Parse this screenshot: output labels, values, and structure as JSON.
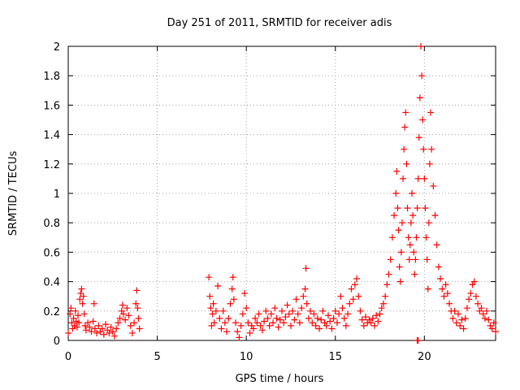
{
  "chart_data": {
    "type": "scatter",
    "title": "Day 251 of 2011, SRMTID for receiver adis",
    "xlabel": "GPS time / hours",
    "ylabel": "SRMTID / TECUs",
    "xlim": [
      0,
      24
    ],
    "ylim": [
      0,
      2
    ],
    "xticks": [
      0,
      5,
      10,
      15,
      20
    ],
    "xtick_labels": [
      "0",
      "5",
      "10",
      "15",
      "20"
    ],
    "yticks": [
      0,
      0.2,
      0.4,
      0.6,
      0.8,
      1,
      1.2,
      1.4,
      1.6,
      1.8,
      2
    ],
    "ytick_labels": [
      "0",
      "0.2",
      "0.4",
      "0.6",
      "0.8",
      "1",
      "1.2",
      "1.4",
      "1.6",
      "1.8",
      "2"
    ],
    "grid": true,
    "marker": "+",
    "color": "#ff0000",
    "series": [
      {
        "name": "SRMTID",
        "points": [
          [
            0.0,
            0.05
          ],
          [
            0.1,
            0.18
          ],
          [
            0.15,
            0.22
          ],
          [
            0.2,
            0.12
          ],
          [
            0.25,
            0.08
          ],
          [
            0.3,
            0.15
          ],
          [
            0.35,
            0.1
          ],
          [
            0.4,
            0.2
          ],
          [
            0.45,
            0.13
          ],
          [
            0.5,
            0.09
          ],
          [
            0.55,
            0.17
          ],
          [
            0.6,
            0.12
          ],
          [
            0.65,
            0.28
          ],
          [
            0.7,
            0.32
          ],
          [
            0.75,
            0.35
          ],
          [
            0.8,
            0.25
          ],
          [
            0.85,
            0.3
          ],
          [
            0.9,
            0.18
          ],
          [
            0.95,
            0.1
          ],
          [
            1.0,
            0.07
          ],
          [
            1.1,
            0.12
          ],
          [
            1.2,
            0.09
          ],
          [
            1.3,
            0.06
          ],
          [
            1.4,
            0.13
          ],
          [
            1.45,
            0.25
          ],
          [
            1.5,
            0.08
          ],
          [
            1.6,
            0.05
          ],
          [
            1.7,
            0.1
          ],
          [
            1.8,
            0.06
          ],
          [
            1.9,
            0.08
          ],
          [
            2.0,
            0.04
          ],
          [
            2.1,
            0.11
          ],
          [
            2.2,
            0.07
          ],
          [
            2.3,
            0.05
          ],
          [
            2.4,
            0.09
          ],
          [
            2.5,
            0.06
          ],
          [
            2.6,
            0.03
          ],
          [
            2.7,
            0.08
          ],
          [
            2.8,
            0.12
          ],
          [
            2.9,
            0.15
          ],
          [
            3.0,
            0.2
          ],
          [
            3.05,
            0.24
          ],
          [
            3.1,
            0.18
          ],
          [
            3.2,
            0.14
          ],
          [
            3.3,
            0.22
          ],
          [
            3.4,
            0.17
          ],
          [
            3.5,
            0.1
          ],
          [
            3.6,
            0.05
          ],
          [
            3.7,
            0.12
          ],
          [
            3.8,
            0.25
          ],
          [
            3.85,
            0.34
          ],
          [
            3.9,
            0.22
          ],
          [
            3.95,
            0.15
          ],
          [
            4.0,
            0.08
          ],
          [
            7.9,
            0.43
          ],
          [
            7.95,
            0.3
          ],
          [
            8.0,
            0.22
          ],
          [
            8.05,
            0.1
          ],
          [
            8.1,
            0.18
          ],
          [
            8.15,
            0.25
          ],
          [
            8.2,
            0.12
          ],
          [
            8.3,
            0.2
          ],
          [
            8.4,
            0.37
          ],
          [
            8.5,
            0.15
          ],
          [
            8.6,
            0.08
          ],
          [
            8.7,
            0.2
          ],
          [
            8.8,
            0.12
          ],
          [
            8.9,
            0.06
          ],
          [
            9.0,
            0.15
          ],
          [
            9.1,
            0.25
          ],
          [
            9.2,
            0.35
          ],
          [
            9.25,
            0.43
          ],
          [
            9.3,
            0.28
          ],
          [
            9.4,
            0.12
          ],
          [
            9.5,
            0.06
          ],
          [
            9.6,
            0.02
          ],
          [
            9.7,
            0.1
          ],
          [
            9.8,
            0.18
          ],
          [
            9.9,
            0.32
          ],
          [
            10.0,
            0.22
          ],
          [
            10.1,
            0.12
          ],
          [
            10.2,
            0.05
          ],
          [
            10.3,
            0.1
          ],
          [
            10.4,
            0.08
          ],
          [
            10.5,
            0.15
          ],
          [
            10.6,
            0.12
          ],
          [
            10.7,
            0.18
          ],
          [
            10.8,
            0.1
          ],
          [
            10.9,
            0.07
          ],
          [
            11.0,
            0.13
          ],
          [
            11.1,
            0.2
          ],
          [
            11.2,
            0.15
          ],
          [
            11.3,
            0.1
          ],
          [
            11.4,
            0.18
          ],
          [
            11.5,
            0.12
          ],
          [
            11.6,
            0.22
          ],
          [
            11.7,
            0.15
          ],
          [
            11.8,
            0.09
          ],
          [
            11.9,
            0.14
          ],
          [
            12.0,
            0.2
          ],
          [
            12.1,
            0.12
          ],
          [
            12.2,
            0.16
          ],
          [
            12.3,
            0.24
          ],
          [
            12.4,
            0.18
          ],
          [
            12.5,
            0.1
          ],
          [
            12.6,
            0.2
          ],
          [
            12.7,
            0.14
          ],
          [
            12.8,
            0.28
          ],
          [
            12.9,
            0.18
          ],
          [
            13.0,
            0.12
          ],
          [
            13.1,
            0.22
          ],
          [
            13.2,
            0.3
          ],
          [
            13.3,
            0.35
          ],
          [
            13.35,
            0.49
          ],
          [
            13.4,
            0.25
          ],
          [
            13.5,
            0.15
          ],
          [
            13.6,
            0.2
          ],
          [
            13.7,
            0.12
          ],
          [
            13.8,
            0.18
          ],
          [
            13.9,
            0.1
          ],
          [
            14.0,
            0.15
          ],
          [
            14.1,
            0.08
          ],
          [
            14.2,
            0.14
          ],
          [
            14.3,
            0.2
          ],
          [
            14.4,
            0.12
          ],
          [
            14.5,
            0.1
          ],
          [
            14.6,
            0.17
          ],
          [
            14.7,
            0.13
          ],
          [
            14.8,
            0.08
          ],
          [
            14.9,
            0.15
          ],
          [
            15.0,
            0.2
          ],
          [
            15.1,
            0.12
          ],
          [
            15.2,
            0.18
          ],
          [
            15.3,
            0.3
          ],
          [
            15.4,
            0.22
          ],
          [
            15.5,
            0.15
          ],
          [
            15.6,
            0.1
          ],
          [
            15.7,
            0.18
          ],
          [
            15.8,
            0.25
          ],
          [
            15.9,
            0.35
          ],
          [
            16.0,
            0.28
          ],
          [
            16.1,
            0.38
          ],
          [
            16.2,
            0.42
          ],
          [
            16.3,
            0.3
          ],
          [
            16.4,
            0.2
          ],
          [
            16.5,
            0.14
          ],
          [
            16.6,
            0.1
          ],
          [
            16.7,
            0.16
          ],
          [
            16.8,
            0.12
          ],
          [
            16.9,
            0.14
          ],
          [
            17.0,
            0.12
          ],
          [
            17.1,
            0.15
          ],
          [
            17.2,
            0.1
          ],
          [
            17.3,
            0.17
          ],
          [
            17.4,
            0.13
          ],
          [
            17.5,
            0.18
          ],
          [
            17.6,
            0.22
          ],
          [
            17.7,
            0.25
          ],
          [
            17.8,
            0.3
          ],
          [
            17.9,
            0.38
          ],
          [
            18.0,
            0.45
          ],
          [
            18.1,
            0.55
          ],
          [
            18.2,
            0.7
          ],
          [
            18.3,
            0.85
          ],
          [
            18.4,
            1.0
          ],
          [
            18.45,
            1.15
          ],
          [
            18.5,
            0.9
          ],
          [
            18.55,
            0.75
          ],
          [
            18.6,
            0.5
          ],
          [
            18.65,
            0.4
          ],
          [
            18.7,
            0.6
          ],
          [
            18.75,
            0.8
          ],
          [
            18.8,
            1.1
          ],
          [
            18.85,
            1.3
          ],
          [
            18.9,
            1.45
          ],
          [
            18.95,
            1.55
          ],
          [
            19.0,
            1.2
          ],
          [
            19.05,
            0.9
          ],
          [
            19.1,
            0.7
          ],
          [
            19.15,
            0.55
          ],
          [
            19.2,
            0.65
          ],
          [
            19.25,
            0.8
          ],
          [
            19.3,
            1.0
          ],
          [
            19.35,
            0.85
          ],
          [
            19.4,
            0.6
          ],
          [
            19.45,
            0.45
          ],
          [
            19.5,
            0.55
          ],
          [
            19.55,
            0.7
          ],
          [
            19.6,
            0.9
          ],
          [
            19.65,
            1.1
          ],
          [
            19.7,
            1.38
          ],
          [
            19.75,
            1.65
          ],
          [
            19.8,
            2.0
          ],
          [
            19.85,
            1.8
          ],
          [
            19.9,
            1.5
          ],
          [
            19.95,
            1.3
          ],
          [
            20.0,
            1.1
          ],
          [
            20.05,
            0.9
          ],
          [
            20.1,
            0.7
          ],
          [
            20.15,
            0.55
          ],
          [
            20.2,
            0.35
          ],
          [
            20.25,
            0.8
          ],
          [
            20.3,
            1.2
          ],
          [
            20.35,
            1.55
          ],
          [
            20.4,
            1.3
          ],
          [
            20.5,
            1.05
          ],
          [
            20.6,
            0.85
          ],
          [
            20.7,
            0.65
          ],
          [
            20.8,
            0.5
          ],
          [
            20.9,
            0.42
          ],
          [
            21.0,
            0.35
          ],
          [
            21.1,
            0.3
          ],
          [
            21.2,
            0.38
          ],
          [
            21.3,
            0.32
          ],
          [
            21.4,
            0.25
          ],
          [
            21.5,
            0.2
          ],
          [
            21.6,
            0.15
          ],
          [
            21.7,
            0.2
          ],
          [
            21.8,
            0.12
          ],
          [
            21.9,
            0.18
          ],
          [
            22.0,
            0.1
          ],
          [
            22.1,
            0.14
          ],
          [
            22.2,
            0.08
          ],
          [
            22.3,
            0.15
          ],
          [
            22.4,
            0.22
          ],
          [
            22.5,
            0.28
          ],
          [
            22.6,
            0.32
          ],
          [
            22.7,
            0.38
          ],
          [
            22.8,
            0.4
          ],
          [
            22.9,
            0.3
          ],
          [
            23.0,
            0.25
          ],
          [
            23.1,
            0.2
          ],
          [
            23.2,
            0.22
          ],
          [
            23.3,
            0.18
          ],
          [
            23.4,
            0.15
          ],
          [
            23.5,
            0.2
          ],
          [
            23.6,
            0.14
          ],
          [
            23.7,
            0.1
          ],
          [
            23.8,
            0.08
          ],
          [
            23.9,
            0.12
          ],
          [
            24.0,
            0.06
          ],
          [
            19.6,
            0.0
          ],
          [
            19.65,
            0.0
          ]
        ]
      }
    ]
  }
}
